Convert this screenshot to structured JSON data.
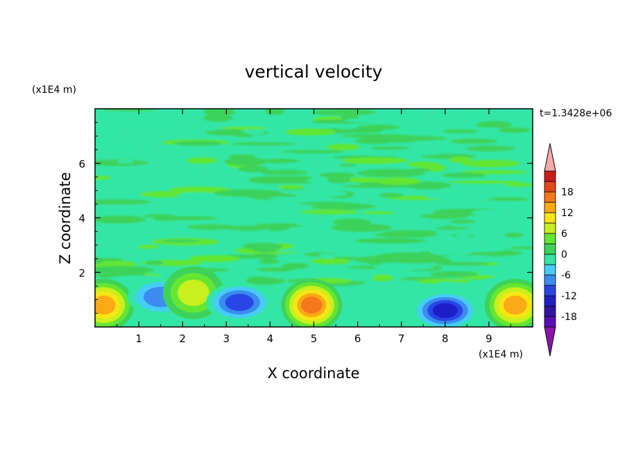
{
  "chart_data": {
    "type": "heatmap",
    "title": "vertical velocity",
    "xlabel": "X coordinate",
    "ylabel": "Z coordinate",
    "x_unit": "(x1E4 m)",
    "y_unit": "(x1E4 m)",
    "time_label": "t=1.3428e+06",
    "xlim": [
      0,
      10
    ],
    "ylim": [
      0,
      8
    ],
    "x_ticks": [
      "1",
      "2",
      "3",
      "4",
      "5",
      "6",
      "7",
      "8",
      "9"
    ],
    "y_ticks": [
      "2",
      "4",
      "6"
    ],
    "colorbar": {
      "levels": [
        -21,
        -18,
        -15,
        -12,
        -9,
        -6,
        -3,
        0,
        3,
        6,
        9,
        12,
        15,
        18,
        21
      ],
      "tick_labels": [
        "18",
        "12",
        "6",
        "0",
        "-6",
        "-12",
        "-18"
      ],
      "colors": [
        "#5a0fb4",
        "#3214a0",
        "#1e1ec8",
        "#2846e6",
        "#3c8cf0",
        "#46cdf5",
        "#33e6a5",
        "#3ed25a",
        "#64e632",
        "#c8f01e",
        "#f5e614",
        "#faaa14",
        "#f5781e",
        "#e6461e",
        "#c81e1e"
      ],
      "over_color": "#f5aaaa",
      "under_color": "#8c14aa",
      "extend": "both"
    },
    "grid": false,
    "features": [
      {
        "x": 0.2,
        "z": 0.8,
        "value": 14
      },
      {
        "x": 1.5,
        "z": 1.1,
        "value": -9
      },
      {
        "x": 2.25,
        "z": 1.25,
        "value": 9
      },
      {
        "x": 3.3,
        "z": 0.9,
        "value": -11
      },
      {
        "x": 4.95,
        "z": 0.8,
        "value": 16
      },
      {
        "x": 8.0,
        "z": 0.6,
        "value": -14
      },
      {
        "x": 9.6,
        "z": 0.8,
        "value": 13
      }
    ]
  }
}
